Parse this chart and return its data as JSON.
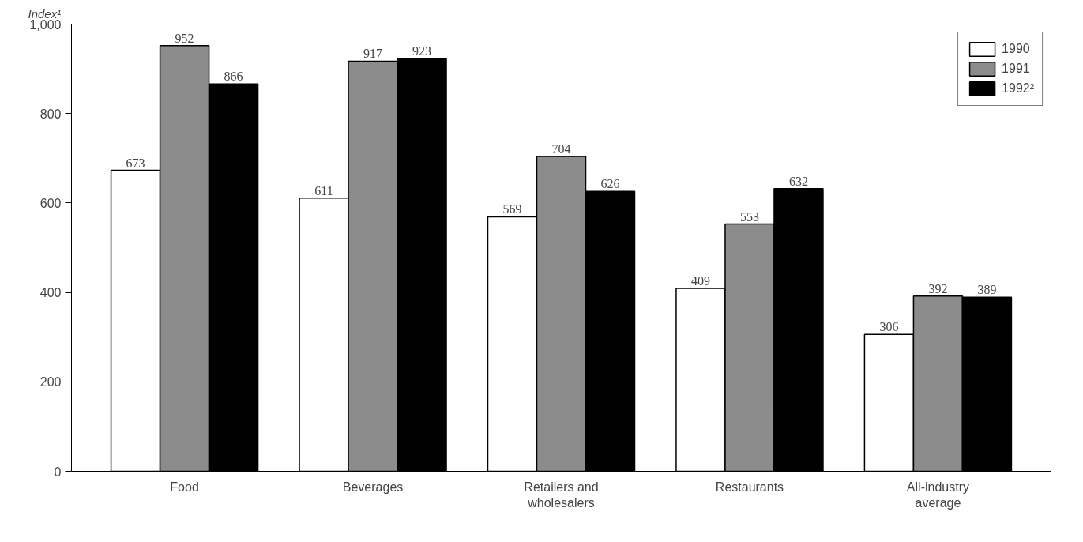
{
  "chart_data": {
    "type": "bar",
    "ylabel": "Index¹",
    "categories": [
      "Food",
      "Beverages",
      "Retailers and\nwholesalers",
      "Restaurants",
      "All-industry\naverage"
    ],
    "series": [
      {
        "name": "1990",
        "color": "#ffffff",
        "values": [
          673,
          611,
          569,
          409,
          306
        ]
      },
      {
        "name": "1991",
        "color": "#8c8c8c",
        "values": [
          952,
          917,
          704,
          553,
          392
        ]
      },
      {
        "name": "1992²",
        "color": "#000000",
        "values": [
          866,
          923,
          626,
          632,
          389
        ]
      }
    ],
    "ylim": [
      0,
      1000
    ],
    "yticks": [
      0,
      200,
      400,
      600,
      800,
      {
        "value": 1000,
        "label": "1,000"
      }
    ],
    "data_labels": true,
    "grid": false,
    "legend": "top right"
  }
}
